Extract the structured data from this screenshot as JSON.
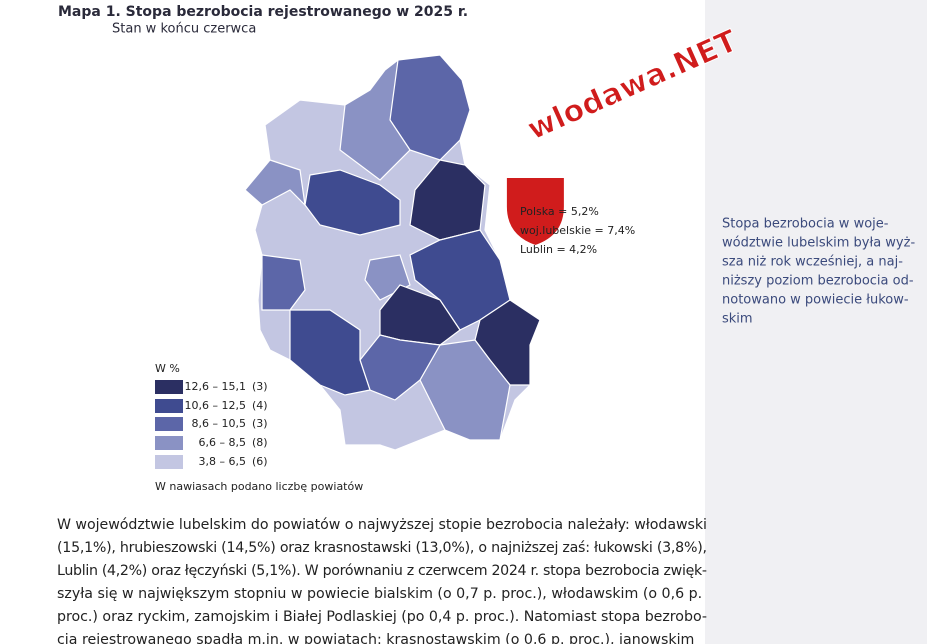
{
  "map": {
    "title": "Mapa 1. Stopa bezrobocia rejestrowanego w 2025 r.",
    "subtitle": "Stan w końcu czerwca",
    "watermark": "wlodawa.NET",
    "stats": [
      "Polska = 5,2%",
      "woj.lubelskie = 7,4%",
      "Lublin = 4,2%"
    ],
    "legend": {
      "title": "W %",
      "items": [
        {
          "range": "12,6 – 15,1",
          "count": "(3)"
        },
        {
          "range": "10,6 – 12,5",
          "count": "(4)"
        },
        {
          "range": "8,6 – 10,5",
          "count": "(3)"
        },
        {
          "range": "6,6 – 8,5",
          "count": "(8)"
        },
        {
          "range": "3,8 – 6,5",
          "count": "(6)"
        }
      ]
    },
    "note": "W nawiasach podano liczbę powiatów"
  },
  "sidebar": {
    "lines": [
      "Stopa bezrobocia w woje-",
      "wództwie lubelskim była wyż-",
      "sza niż rok wcześniej, a naj-",
      "niższy poziom bezrobocia od-",
      "notowano w powiecie łukow-",
      "skim"
    ]
  },
  "body": {
    "lines": [
      "W województwie lubelskim do powiatów o najwyższej stopie bezrobocia należały: włodawski",
      "(15,1%), hrubieszowski (14,5%) oraz krasnostawski (13,0%), o najniższej zaś: łukowski (3,8%),",
      "Lublin (4,2%) oraz łęczyński (5,1%). W porównaniu z czerwcem 2024 r. stopa bezrobocia zwięk-",
      "szyła się w największym stopniu w powiecie bialskim (o 0,7 p. proc.), włodawskim (o 0,6 p.",
      "proc.) oraz ryckim, zamojskim i Białej Podlaskiej (po 0,4 p. proc.). Natomiast stopa bezrobo-",
      "cia rejestrowanego spadła m.in. w powiatach: krasnostawskim (o 0,6 p. proc.), janowskim"
    ]
  }
}
